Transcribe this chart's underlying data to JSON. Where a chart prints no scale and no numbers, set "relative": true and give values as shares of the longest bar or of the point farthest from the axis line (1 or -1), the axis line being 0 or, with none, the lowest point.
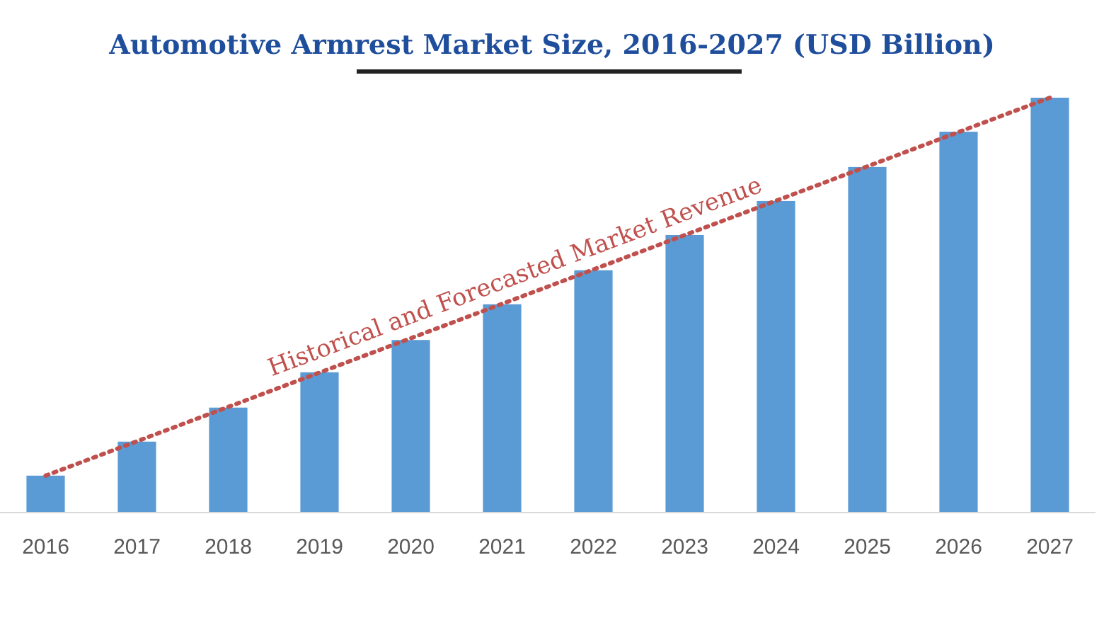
{
  "chart_data": {
    "type": "bar",
    "title": "Automotive Armrest Market Size, 2016-2027 (USD Billion)",
    "categories": [
      "2016",
      "2017",
      "2018",
      "2019",
      "2020",
      "2021",
      "2022",
      "2023",
      "2024",
      "2025",
      "2026",
      "2027"
    ],
    "relative": true,
    "series": [
      {
        "color": "#5b9bd5",
        "values": [
          0.089,
          0.171,
          0.253,
          0.338,
          0.416,
          0.502,
          0.584,
          0.669,
          0.751,
          0.833,
          0.918,
          1
        ]
      },
      {
        "type": "line",
        "color": "#c0504d",
        "line_style": "dotted",
        "values": [
          0.089,
          null,
          null,
          null,
          null,
          null,
          null,
          null,
          null,
          null,
          null,
          1
        ]
      }
    ],
    "annotations": [
      "Historical and Forecasted Market Revenue"
    ]
  }
}
